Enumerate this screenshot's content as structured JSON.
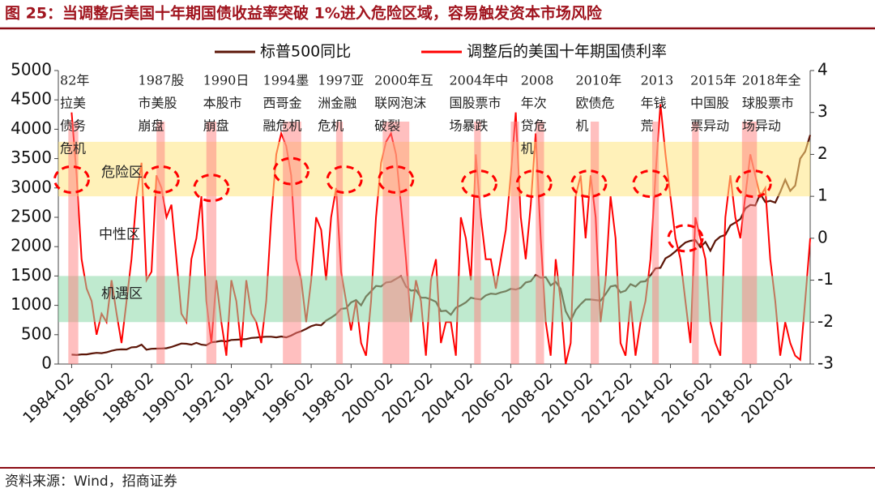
{
  "chart_data": {
    "type": "line",
    "title": "图 25：当调整后美国十年期国债收益率突破 1%进入危险区域，容易触发资本市场风险",
    "source": "资料来源：Wind，招商证券",
    "x": [
      "1984-02",
      "1984-05",
      "1984-08",
      "1984-11",
      "1985-02",
      "1985-05",
      "1985-08",
      "1985-11",
      "1986-02",
      "1986-05",
      "1986-08",
      "1986-11",
      "1987-02",
      "1987-05",
      "1987-08",
      "1987-11",
      "1988-02",
      "1988-05",
      "1988-08",
      "1988-11",
      "1989-02",
      "1989-05",
      "1989-08",
      "1989-11",
      "1990-02",
      "1990-05",
      "1990-08",
      "1990-11",
      "1991-02",
      "1991-05",
      "1991-08",
      "1991-11",
      "1992-02",
      "1992-05",
      "1992-08",
      "1992-11",
      "1993-02",
      "1993-05",
      "1993-08",
      "1993-11",
      "1994-02",
      "1994-05",
      "1994-08",
      "1994-11",
      "1995-02",
      "1995-05",
      "1995-08",
      "1995-11",
      "1996-02",
      "1996-05",
      "1996-08",
      "1996-11",
      "1997-02",
      "1997-05",
      "1997-08",
      "1997-11",
      "1998-02",
      "1998-05",
      "1998-08",
      "1998-11",
      "1999-02",
      "1999-05",
      "1999-08",
      "1999-11",
      "2000-02",
      "2000-05",
      "2000-08",
      "2000-11",
      "2001-02",
      "2001-05",
      "2001-08",
      "2001-11",
      "2002-02",
      "2002-05",
      "2002-08",
      "2002-11",
      "2003-02",
      "2003-05",
      "2003-08",
      "2003-11",
      "2004-02",
      "2004-05",
      "2004-08",
      "2004-11",
      "2005-02",
      "2005-05",
      "2005-08",
      "2005-11",
      "2006-02",
      "2006-05",
      "2006-08",
      "2006-11",
      "2007-02",
      "2007-05",
      "2007-08",
      "2007-11",
      "2008-02",
      "2008-05",
      "2008-08",
      "2008-11",
      "2009-02",
      "2009-05",
      "2009-08",
      "2009-11",
      "2010-02",
      "2010-05",
      "2010-08",
      "2010-11",
      "2011-02",
      "2011-05",
      "2011-08",
      "2011-11",
      "2012-02",
      "2012-05",
      "2012-08",
      "2012-11",
      "2013-02",
      "2013-05",
      "2013-08",
      "2013-11",
      "2014-02",
      "2014-05",
      "2014-08",
      "2014-11",
      "2015-02",
      "2015-05",
      "2015-08",
      "2015-11",
      "2016-02",
      "2016-05",
      "2016-08",
      "2016-11",
      "2017-02",
      "2017-05",
      "2017-08",
      "2017-11",
      "2018-02",
      "2018-05",
      "2018-08",
      "2018-11",
      "2019-02",
      "2019-05",
      "2019-08",
      "2019-11",
      "2020-02",
      "2020-05",
      "2020-08",
      "2020-11",
      "2021-02"
    ],
    "series": [
      {
        "name": "标普500同比",
        "color": "#5c1608",
        "axis": "y",
        "values": [
          160,
          155,
          165,
          165,
          180,
          190,
          185,
          200,
          225,
          245,
          250,
          248,
          285,
          290,
          330,
          245,
          260,
          262,
          265,
          270,
          290,
          320,
          350,
          345,
          330,
          360,
          330,
          320,
          370,
          380,
          395,
          385,
          410,
          415,
          420,
          425,
          445,
          450,
          460,
          465,
          465,
          455,
          470,
          455,
          485,
          530,
          560,
          600,
          645,
          670,
          660,
          740,
          790,
          850,
          940,
          950,
          1050,
          1090,
          1000,
          1150,
          1240,
          1330,
          1320,
          1390,
          1400,
          1450,
          1500,
          1320,
          1250,
          1260,
          1130,
          1130,
          1100,
          1060,
          900,
          910,
          840,
          960,
          1000,
          1050,
          1130,
          1110,
          1100,
          1170,
          1200,
          1190,
          1220,
          1240,
          1280,
          1270,
          1300,
          1390,
          1410,
          1520,
          1470,
          1480,
          1340,
          1400,
          1280,
          900,
          740,
          920,
          1020,
          1100,
          1100,
          1090,
          1080,
          1190,
          1320,
          1340,
          1220,
          1250,
          1360,
          1320,
          1400,
          1410,
          1510,
          1630,
          1640,
          1800,
          1850,
          1920,
          2000,
          2070,
          2100,
          2110,
          1990,
          2080,
          1930,
          2100,
          2170,
          2200,
          2360,
          2410,
          2470,
          2650,
          2710,
          2700,
          2900,
          2760,
          2780,
          2750,
          2930,
          3140,
          2950,
          3040,
          3500,
          3620,
          3900
        ]
      },
      {
        "name": "调整后的美国十年期国债利率",
        "color": "#ff0000",
        "axis": "y2",
        "values": [
          3.0,
          1.5,
          -0.5,
          -1.2,
          -1.5,
          -2.3,
          -1.8,
          -2.0,
          -1.0,
          -1.8,
          -2.5,
          -1.5,
          -0.5,
          1.0,
          1.8,
          -1.0,
          -0.8,
          1.5,
          1.2,
          0.5,
          0.8,
          -0.5,
          -1.8,
          -2.0,
          -0.5,
          0.0,
          1.0,
          -1.5,
          -2.5,
          -1.0,
          -2.0,
          -2.8,
          -1.0,
          -1.5,
          -2.6,
          -1.0,
          -1.8,
          -2.0,
          -2.5,
          -1.5,
          0.5,
          2.0,
          2.5,
          2.2,
          1.5,
          -0.5,
          -1.0,
          -2.0,
          -1.0,
          0.5,
          0.2,
          -1.0,
          0.5,
          1.2,
          -0.8,
          -1.5,
          -2.2,
          -1.5,
          -2.5,
          -2.8,
          -1.5,
          0.5,
          1.8,
          2.3,
          2.5,
          2.0,
          0.8,
          -0.5,
          -2.0,
          -1.0,
          -1.5,
          -2.8,
          -1.0,
          -0.5,
          -2.5,
          -2.0,
          -2.0,
          -2.8,
          0.5,
          0.0,
          -1.0,
          2.0,
          0.5,
          -0.5,
          -0.5,
          -1.2,
          -0.5,
          0.2,
          1.5,
          3.0,
          0.5,
          -0.5,
          0.8,
          2.5,
          0.0,
          -2.0,
          -2.8,
          -0.5,
          -1.5,
          -3.0,
          -2.5,
          1.0,
          1.5,
          0.0,
          1.5,
          0.5,
          -2.0,
          -1.0,
          1.0,
          0.0,
          -2.5,
          -2.8,
          -1.5,
          -2.8,
          -2.0,
          -1.5,
          -0.5,
          1.5,
          3.2,
          2.0,
          1.0,
          0.0,
          -0.5,
          -1.5,
          -2.5,
          0.5,
          0.0,
          -0.5,
          -2.0,
          -2.5,
          -2.8,
          0.5,
          1.5,
          0.5,
          0.0,
          1.0,
          2.0,
          1.5,
          1.0,
          1.2,
          -0.5,
          -1.5,
          -2.8,
          -2.0,
          -2.5,
          -2.8,
          -2.9,
          -1.5,
          0.0
        ]
      }
    ],
    "xlim": [
      "1983-06",
      "2021-02"
    ],
    "xticks": [
      "1984-02",
      "1986-02",
      "1988-02",
      "1990-02",
      "1992-02",
      "1994-02",
      "1996-02",
      "1998-02",
      "2000-02",
      "2002-02",
      "2004-02",
      "2006-02",
      "2008-02",
      "2010-02",
      "2012-02",
      "2014-02",
      "2016-02",
      "2018-02",
      "2020-02"
    ],
    "ylim": [
      0,
      5000
    ],
    "yticks": [
      0,
      500,
      1000,
      1500,
      2000,
      2500,
      3000,
      3500,
      4000,
      4500,
      5000
    ],
    "y2lim": [
      -3,
      4
    ],
    "y2ticks": [
      -3,
      -2,
      -1,
      0,
      1,
      2,
      3,
      4
    ],
    "zones": [
      {
        "label": "危险区",
        "range": [
          1,
          2.3
        ],
        "color": "#ffe680"
      },
      {
        "label": "机遇区",
        "range": [
          -2,
          -0.9
        ],
        "color": "#8ad9a8"
      }
    ],
    "neutral_label": "中性区",
    "shaded_periods": [
      {
        "start": "1983-12",
        "end": "1984-06"
      },
      {
        "start": "1988-05",
        "end": "1988-10"
      },
      {
        "start": "1990-11",
        "end": "1991-05"
      },
      {
        "start": "1994-09",
        "end": "1995-08"
      },
      {
        "start": "1997-05",
        "end": "1997-09"
      },
      {
        "start": "1999-09",
        "end": "2001-01"
      },
      {
        "start": "2004-04",
        "end": "2004-08"
      },
      {
        "start": "2006-02",
        "end": "2006-07"
      },
      {
        "start": "2007-05",
        "end": "2007-10"
      },
      {
        "start": "2010-02",
        "end": "2010-07"
      },
      {
        "start": "2013-03",
        "end": "2013-07"
      },
      {
        "start": "2015-03",
        "end": "2015-07"
      },
      {
        "start": "2017-09",
        "end": "2018-06"
      }
    ],
    "circles": [
      {
        "x": "1984-02",
        "y": 1.4
      },
      {
        "x": "1988-08",
        "y": 1.4
      },
      {
        "x": "1991-02",
        "y": 1.2
      },
      {
        "x": "1995-02",
        "y": 1.6
      },
      {
        "x": "1997-10",
        "y": 1.4
      },
      {
        "x": "2000-05",
        "y": 1.4
      },
      {
        "x": "2004-07",
        "y": 1.3
      },
      {
        "x": "2007-04",
        "y": 1.3
      },
      {
        "x": "2010-01",
        "y": 1.3
      },
      {
        "x": "2013-02",
        "y": 1.3
      },
      {
        "x": "2014-11",
        "y": 0.0
      },
      {
        "x": "2018-04",
        "y": 1.3
      }
    ],
    "annotations": [
      {
        "x": "1983-07",
        "lines": [
          "82年",
          "拉美",
          "债务",
          "危机"
        ]
      },
      {
        "x": "1987-06",
        "lines": [
          "1987股",
          "市美股",
          "崩盘"
        ]
      },
      {
        "x": "1990-09",
        "lines": [
          "1990日",
          "本股市",
          "崩盘"
        ]
      },
      {
        "x": "1993-09",
        "lines": [
          "1994墨",
          "西哥金",
          "融危机"
        ]
      },
      {
        "x": "1996-06",
        "lines": [
          "1997亚",
          "洲金融",
          "危机"
        ]
      },
      {
        "x": "1999-04",
        "lines": [
          "2000年互",
          "联网泡沫",
          "破裂"
        ]
      },
      {
        "x": "2003-01",
        "lines": [
          "2004年中",
          "国股票市",
          "场暴跌"
        ]
      },
      {
        "x": "2006-08",
        "lines": [
          "2008",
          "年次",
          "贷危",
          "机"
        ]
      },
      {
        "x": "2009-05",
        "lines": [
          "2010年",
          "欧债危",
          "机"
        ]
      },
      {
        "x": "2012-08",
        "lines": [
          "2013",
          "年钱",
          "荒"
        ]
      },
      {
        "x": "2015-02",
        "lines": [
          "2015年",
          "中国股",
          "票异动"
        ]
      },
      {
        "x": "2017-09",
        "lines": [
          "2018年全",
          "球股票市",
          "场异动"
        ]
      }
    ]
  }
}
